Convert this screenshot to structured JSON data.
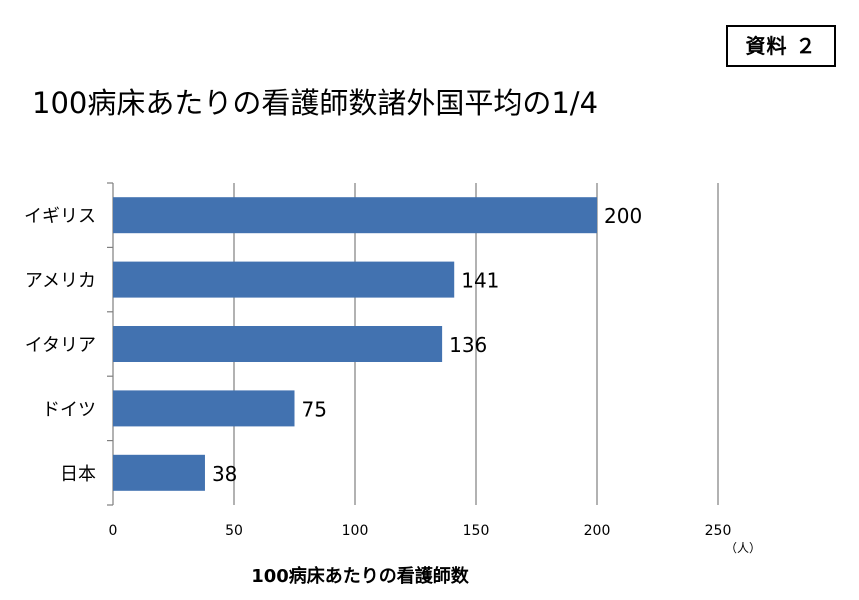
{
  "badge": "資料 ２",
  "title": "100病床あたりの看護師数諸外国平均の1/4",
  "colors": {
    "bar": "#4272b0",
    "grid": "#7f7f7f"
  },
  "chart_data": {
    "type": "bar",
    "orientation": "horizontal",
    "categories": [
      "イギリス",
      "アメリカ",
      "イタリア",
      "ドイツ",
      "日本"
    ],
    "values": [
      200,
      141,
      136,
      75,
      38
    ],
    "xlabel": "100病床あたりの看護師数",
    "unit": "（人）",
    "xlim": [
      0,
      250
    ],
    "xticks": [
      0,
      50,
      100,
      150,
      200,
      250
    ],
    "grid": true
  }
}
